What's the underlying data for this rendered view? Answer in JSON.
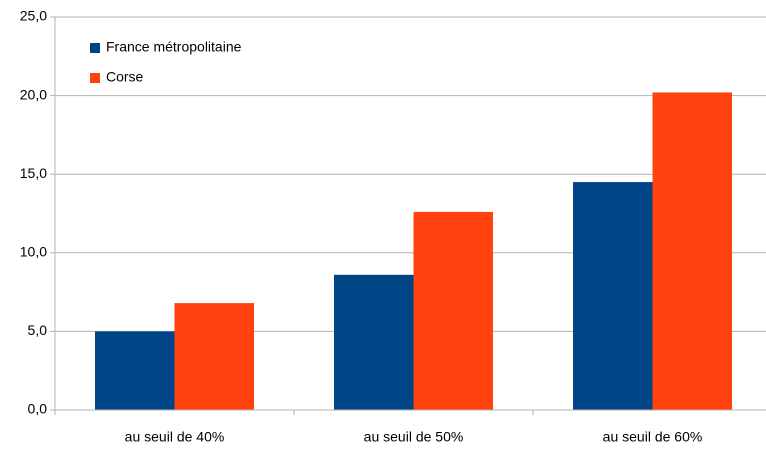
{
  "chart_data": {
    "type": "bar",
    "categories": [
      "au seuil de 40%",
      "au seuil de 50%",
      "au seuil de 60%"
    ],
    "series": [
      {
        "name": "France métropolitaine",
        "color": "#004586",
        "values": [
          5.0,
          8.6,
          14.5
        ]
      },
      {
        "name": "Corse",
        "color": "#ff420e",
        "values": [
          6.8,
          12.6,
          20.2
        ]
      }
    ],
    "ylim": [
      0,
      25
    ],
    "yticks": [
      {
        "value": 0,
        "label": "0,0"
      },
      {
        "value": 5,
        "label": "5,0"
      },
      {
        "value": 10,
        "label": "10,0"
      },
      {
        "value": 15,
        "label": "15,0"
      },
      {
        "value": 20,
        "label": "20,0"
      },
      {
        "value": 25,
        "label": "25,0"
      }
    ],
    "grid": true,
    "legend": "top-left"
  }
}
